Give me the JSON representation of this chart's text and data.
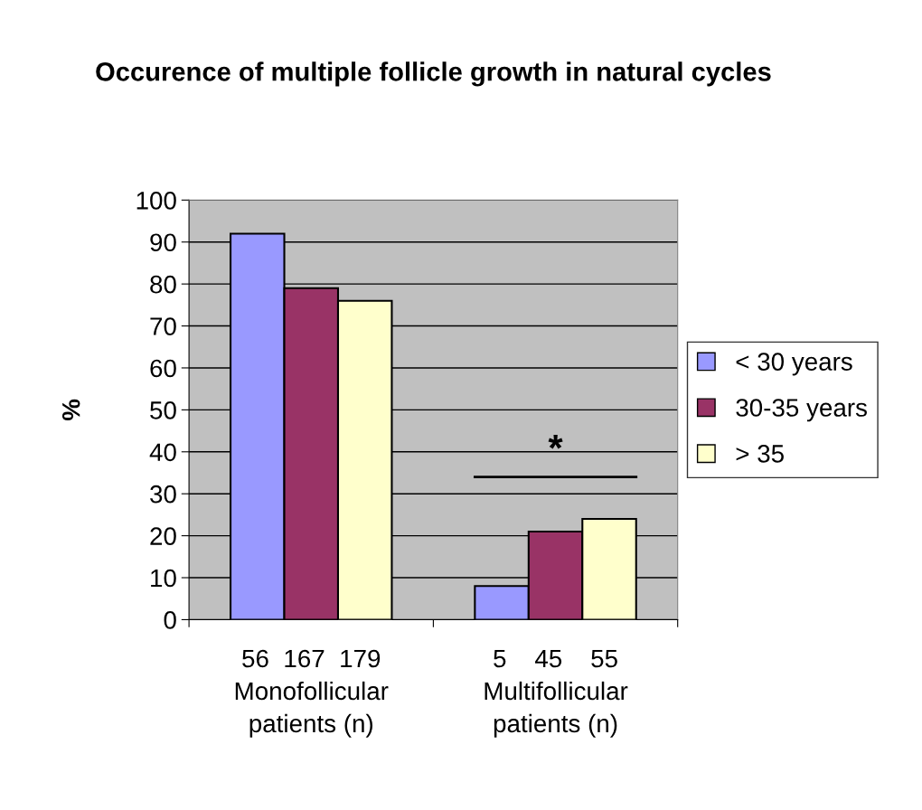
{
  "chart_data": {
    "type": "bar",
    "title": "Occurence of multiple follicle growth in natural cycles",
    "ylabel": "%",
    "categories": [
      "56  167  179\nMonofollicular\npatients (n)",
      "5    45    55\nMultifollicular\npatients (n)"
    ],
    "series": [
      {
        "name": "< 30 years",
        "color": "#9999ff",
        "values": [
          92,
          8
        ]
      },
      {
        "name": "30-35 years",
        "color": "#993366",
        "values": [
          79,
          21
        ]
      },
      {
        "name": "> 35",
        "color": "#ffffcc",
        "values": [
          76,
          24
        ]
      }
    ],
    "ylim": [
      0,
      100
    ],
    "yticks": [
      0,
      10,
      20,
      30,
      40,
      50,
      60,
      70,
      80,
      90,
      100
    ],
    "grid": "y",
    "legend": "right",
    "annotations": [
      "*"
    ]
  }
}
